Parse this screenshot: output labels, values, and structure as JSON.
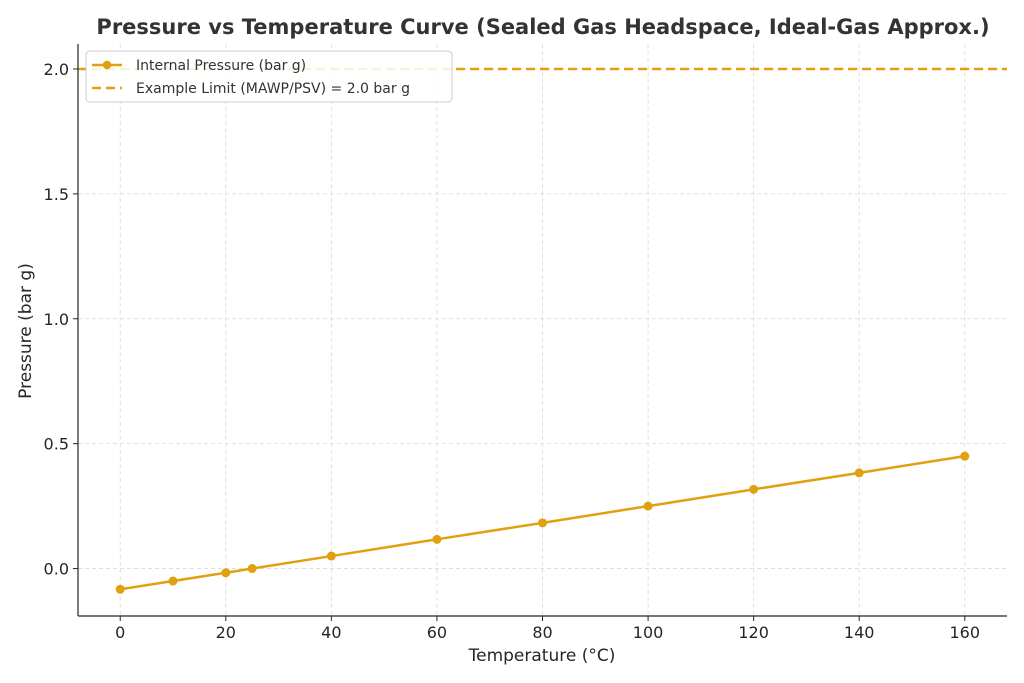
{
  "chart_data": {
    "type": "line",
    "title": "Pressure vs Temperature Curve (Sealed Gas Headspace, Ideal-Gas Approx.)",
    "xlabel": "Temperature (°C)",
    "ylabel": "Pressure (bar g)",
    "xlim": [
      -8,
      168
    ],
    "ylim": [
      -0.19,
      2.1
    ],
    "x_ticks": [
      0,
      20,
      40,
      60,
      80,
      100,
      120,
      140,
      160
    ],
    "y_ticks": [
      0.0,
      0.5,
      1.0,
      1.5,
      2.0
    ],
    "x_tick_labels": [
      "0",
      "20",
      "40",
      "60",
      "80",
      "100",
      "120",
      "140",
      "160"
    ],
    "y_tick_labels": [
      "0.0",
      "0.5",
      "1.0",
      "1.5",
      "2.0"
    ],
    "grid": true,
    "legend_position": "top-left",
    "series": [
      {
        "name": "Internal Pressure (bar g)",
        "style": "solid-with-markers",
        "color": "#e0a010",
        "x": [
          0,
          10,
          20,
          25,
          40,
          60,
          80,
          100,
          120,
          140,
          160
        ],
        "y": [
          -0.083,
          -0.05,
          -0.017,
          0.0,
          0.05,
          0.117,
          0.183,
          0.25,
          0.317,
          0.383,
          0.45
        ]
      },
      {
        "name": "Example Limit (MAWP/PSV) = 2.0 bar g",
        "style": "dashed",
        "color": "#e0a010",
        "y_constant": 2.0
      }
    ]
  }
}
